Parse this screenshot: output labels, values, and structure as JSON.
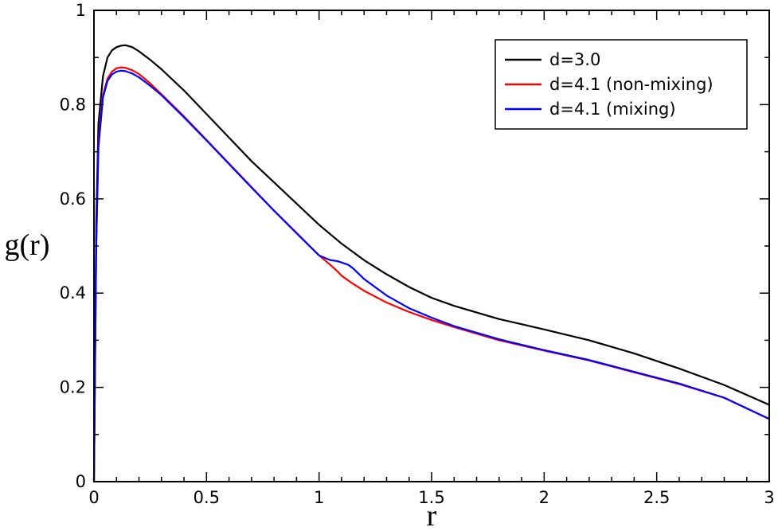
{
  "chart_data": {
    "type": "line",
    "xlabel": "r",
    "ylabel": "g(r)",
    "xlim": [
      0,
      3
    ],
    "ylim": [
      0,
      1
    ],
    "xticks": [
      0,
      0.5,
      1,
      1.5,
      2,
      2.5,
      3
    ],
    "xtick_labels": [
      "0",
      "0.5",
      "1",
      "1.5",
      "2",
      "2.5",
      "3"
    ],
    "yticks": [
      0,
      0.2,
      0.4,
      0.6,
      0.8,
      1
    ],
    "ytick_labels": [
      "0",
      "0.2",
      "0.4",
      "0.6",
      "0.8",
      "1"
    ],
    "grid": false,
    "legend_position": "top-right",
    "series": [
      {
        "name": "d=3.0",
        "color": "#000000",
        "x": [
          0,
          0.01,
          0.02,
          0.04,
          0.06,
          0.08,
          0.1,
          0.12,
          0.14,
          0.17,
          0.2,
          0.25,
          0.3,
          0.4,
          0.5,
          0.6,
          0.7,
          0.8,
          0.9,
          1.0,
          1.05,
          1.1,
          1.2,
          1.3,
          1.4,
          1.5,
          1.6,
          1.8,
          2.0,
          2.2,
          2.4,
          2.6,
          2.8,
          3.0
        ],
        "y": [
          0,
          0.55,
          0.76,
          0.86,
          0.9,
          0.915,
          0.922,
          0.925,
          0.926,
          0.922,
          0.913,
          0.895,
          0.875,
          0.83,
          0.78,
          0.73,
          0.68,
          0.635,
          0.59,
          0.545,
          0.525,
          0.505,
          0.47,
          0.44,
          0.413,
          0.39,
          0.373,
          0.345,
          0.323,
          0.3,
          0.272,
          0.24,
          0.205,
          0.163
        ]
      },
      {
        "name": "d=4.1 (non-mixing)",
        "color": "#ff0000",
        "x": [
          0,
          0.01,
          0.02,
          0.04,
          0.06,
          0.08,
          0.1,
          0.12,
          0.14,
          0.17,
          0.2,
          0.25,
          0.3,
          0.4,
          0.5,
          0.6,
          0.7,
          0.8,
          0.9,
          1.0,
          1.05,
          1.08,
          1.1,
          1.15,
          1.2,
          1.3,
          1.4,
          1.5,
          1.6,
          1.8,
          2.0,
          2.2,
          2.4,
          2.6,
          2.8,
          3.0
        ],
        "y": [
          0,
          0.5,
          0.72,
          0.82,
          0.855,
          0.87,
          0.877,
          0.879,
          0.878,
          0.873,
          0.865,
          0.845,
          0.822,
          0.775,
          0.725,
          0.675,
          0.625,
          0.575,
          0.528,
          0.48,
          0.46,
          0.447,
          0.437,
          0.42,
          0.405,
          0.38,
          0.36,
          0.343,
          0.328,
          0.3,
          0.278,
          0.257,
          0.232,
          0.207,
          0.178,
          0.133
        ]
      },
      {
        "name": "d=4.1 (mixing)",
        "color": "#0000ff",
        "x": [
          0,
          0.01,
          0.02,
          0.04,
          0.06,
          0.08,
          0.1,
          0.12,
          0.14,
          0.17,
          0.2,
          0.25,
          0.3,
          0.4,
          0.5,
          0.6,
          0.7,
          0.8,
          0.9,
          1.0,
          1.05,
          1.08,
          1.1,
          1.13,
          1.15,
          1.2,
          1.3,
          1.4,
          1.5,
          1.6,
          1.8,
          2.0,
          2.2,
          2.4,
          2.6,
          2.8,
          3.0
        ],
        "y": [
          0,
          0.5,
          0.71,
          0.815,
          0.85,
          0.864,
          0.87,
          0.872,
          0.871,
          0.866,
          0.858,
          0.84,
          0.82,
          0.773,
          0.724,
          0.674,
          0.624,
          0.575,
          0.527,
          0.48,
          0.47,
          0.468,
          0.465,
          0.46,
          0.453,
          0.43,
          0.395,
          0.368,
          0.348,
          0.33,
          0.302,
          0.279,
          0.258,
          0.233,
          0.208,
          0.178,
          0.133
        ]
      }
    ]
  }
}
